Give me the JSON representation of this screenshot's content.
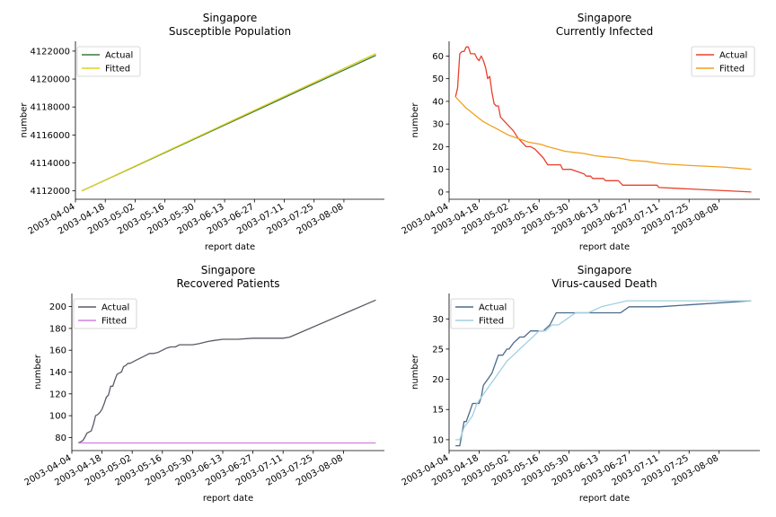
{
  "chart_data": [
    {
      "type": "line",
      "title": [
        "Singapore",
        "Susceptible Population"
      ],
      "xlabel": "report date",
      "ylabel": "number",
      "x_ticks": [
        "2003-04-04",
        "2003-04-18",
        "2003-05-02",
        "2003-05-16",
        "2003-05-30",
        "2003-06-13",
        "2003-06-27",
        "2003-07-11",
        "2003-07-25",
        "2003-08-08"
      ],
      "y_ticks": [
        4112000,
        4114000,
        4116000,
        4118000,
        4120000,
        4122000
      ],
      "xlim": [
        "2003-04-04",
        "2003-08-27"
      ],
      "ylim": [
        4111400,
        4122700
      ],
      "legend": "upper-left",
      "series": [
        {
          "name": "Actual",
          "color": "#3a7a3a",
          "x": [
            "2003-04-07",
            "2003-08-23"
          ],
          "y": [
            4112000,
            4121700
          ]
        },
        {
          "name": "Fitted",
          "color": "#e0d020",
          "x": [
            "2003-04-07",
            "2003-08-23"
          ],
          "y": [
            4112000,
            4121830
          ]
        }
      ]
    },
    {
      "type": "line",
      "title": [
        "Singapore",
        "Currently Infected"
      ],
      "xlabel": "report date",
      "ylabel": "number",
      "x_ticks": [
        "2003-04-04",
        "2003-04-18",
        "2003-05-02",
        "2003-05-16",
        "2003-05-30",
        "2003-06-13",
        "2003-06-27",
        "2003-07-11",
        "2003-07-25",
        "2003-08-08"
      ],
      "y_ticks": [
        0,
        10,
        20,
        30,
        40,
        50,
        60
      ],
      "xlim": [
        "2003-04-04",
        "2003-08-27"
      ],
      "ylim": [
        -3.2,
        66.5
      ],
      "legend": "upper-right",
      "series": [
        {
          "name": "Actual",
          "color": "#e8402c",
          "x": [
            "2003-04-07",
            "2003-04-08",
            "2003-04-09",
            "2003-04-10",
            "2003-04-11",
            "2003-04-12",
            "2003-04-13",
            "2003-04-14",
            "2003-04-15",
            "2003-04-16",
            "2003-04-17",
            "2003-04-18",
            "2003-04-19",
            "2003-04-20",
            "2003-04-21",
            "2003-04-22",
            "2003-04-23",
            "2003-04-24",
            "2003-04-25",
            "2003-04-26",
            "2003-04-27",
            "2003-04-28",
            "2003-04-29",
            "2003-04-30",
            "2003-05-01",
            "2003-05-02",
            "2003-05-04",
            "2003-05-06",
            "2003-05-08",
            "2003-05-10",
            "2003-05-12",
            "2003-05-14",
            "2003-05-16",
            "2003-05-18",
            "2003-05-20",
            "2003-05-22",
            "2003-05-23",
            "2003-05-26",
            "2003-05-27",
            "2003-05-30",
            "2003-05-31",
            "2003-06-06",
            "2003-06-07",
            "2003-06-09",
            "2003-06-10",
            "2003-06-15",
            "2003-06-16",
            "2003-06-22",
            "2003-06-23",
            "2003-06-24",
            "2003-06-25",
            "2003-06-26",
            "2003-06-27",
            "2003-07-10",
            "2003-07-11",
            "2003-08-23"
          ],
          "y": [
            42,
            46,
            61,
            62,
            62,
            64,
            64,
            61,
            61,
            61,
            59,
            58,
            60,
            58,
            55,
            50,
            51,
            44,
            39,
            38,
            38,
            33,
            32,
            31,
            30,
            29,
            27,
            24,
            22,
            20,
            20,
            19,
            17,
            15,
            12,
            12,
            12,
            12,
            10,
            10,
            10,
            8,
            7,
            7,
            6,
            6,
            5,
            5,
            4,
            3,
            3,
            3,
            3,
            3,
            2,
            0
          ]
        },
        {
          "name": "Fitted",
          "color": "#f0a020",
          "x": [
            "2003-04-07",
            "2003-04-08",
            "2003-04-10",
            "2003-04-12",
            "2003-04-14",
            "2003-04-16",
            "2003-04-18",
            "2003-04-20",
            "2003-04-22",
            "2003-04-24",
            "2003-04-26",
            "2003-04-28",
            "2003-04-30",
            "2003-05-02",
            "2003-05-05",
            "2003-05-08",
            "2003-05-11",
            "2003-05-14",
            "2003-05-17",
            "2003-05-20",
            "2003-05-24",
            "2003-05-28",
            "2003-06-01",
            "2003-06-06",
            "2003-06-11",
            "2003-06-16",
            "2003-06-22",
            "2003-06-28",
            "2003-07-05",
            "2003-07-12",
            "2003-07-20",
            "2003-07-30",
            "2003-08-10",
            "2003-08-23"
          ],
          "y": [
            42,
            41,
            39,
            37,
            35.5,
            34,
            32.5,
            31,
            30,
            29,
            28,
            27,
            26,
            25,
            24,
            23,
            22,
            21.5,
            21,
            20,
            19,
            18,
            17.5,
            17,
            16,
            15.5,
            15,
            14,
            13.5,
            12.5,
            12,
            11.5,
            11,
            10
          ]
        }
      ]
    },
    {
      "type": "line",
      "title": [
        "Singapore",
        "Recovered Patients"
      ],
      "xlabel": "report date",
      "ylabel": "number",
      "x_ticks": [
        "2003-04-04",
        "2003-04-18",
        "2003-05-02",
        "2003-05-16",
        "2003-05-30",
        "2003-06-13",
        "2003-06-27",
        "2003-07-11",
        "2003-07-25",
        "2003-08-08"
      ],
      "y_ticks": [
        80,
        100,
        120,
        140,
        160,
        180,
        200
      ],
      "xlim": [
        "2003-04-04",
        "2003-08-27"
      ],
      "ylim": [
        68,
        212
      ],
      "legend": "upper-left",
      "series": [
        {
          "name": "Actual",
          "color": "#5a5a64",
          "x": [
            "2003-04-07",
            "2003-04-08",
            "2003-04-09",
            "2003-04-10",
            "2003-04-11",
            "2003-04-12",
            "2003-04-13",
            "2003-04-14",
            "2003-04-15",
            "2003-04-16",
            "2003-04-17",
            "2003-04-18",
            "2003-04-19",
            "2003-04-20",
            "2003-04-21",
            "2003-04-22",
            "2003-04-23",
            "2003-04-24",
            "2003-04-25",
            "2003-04-26",
            "2003-04-27",
            "2003-04-28",
            "2003-04-29",
            "2003-04-30",
            "2003-05-01",
            "2003-05-02",
            "2003-05-04",
            "2003-05-06",
            "2003-05-08",
            "2003-05-10",
            "2003-05-12",
            "2003-05-14",
            "2003-05-16",
            "2003-05-18",
            "2003-05-20",
            "2003-05-22",
            "2003-05-24",
            "2003-05-27",
            "2003-05-30",
            "2003-06-02",
            "2003-06-06",
            "2003-06-09",
            "2003-06-13",
            "2003-06-20",
            "2003-06-27",
            "2003-07-11",
            "2003-07-14",
            "2003-08-23"
          ],
          "y": [
            75,
            76,
            77,
            80,
            84,
            85,
            86,
            92,
            100,
            101,
            103,
            106,
            111,
            117,
            119,
            127,
            127,
            133,
            138,
            139,
            140,
            145,
            146,
            148,
            148,
            149,
            151,
            153,
            155,
            157,
            157,
            158,
            160,
            162,
            163,
            163,
            165,
            165,
            165,
            166,
            168,
            169,
            170,
            170,
            171,
            171,
            172,
            206
          ]
        },
        {
          "name": "Fitted",
          "color": "#d080e0",
          "x": [
            "2003-04-07",
            "2003-08-23"
          ],
          "y": [
            75,
            75
          ]
        }
      ]
    },
    {
      "type": "line",
      "title": [
        "Singapore",
        "Virus-caused Death"
      ],
      "xlabel": "report date",
      "ylabel": "number",
      "x_ticks": [
        "2003-04-04",
        "2003-04-18",
        "2003-05-02",
        "2003-05-16",
        "2003-05-30",
        "2003-06-13",
        "2003-06-27",
        "2003-07-11",
        "2003-07-25",
        "2003-08-08"
      ],
      "y_ticks": [
        10,
        15,
        20,
        25,
        30
      ],
      "xlim": [
        "2003-04-04",
        "2003-08-27"
      ],
      "ylim": [
        8.2,
        34.2
      ],
      "legend": "upper-left",
      "series": [
        {
          "name": "Actual",
          "color": "#4a6a8a",
          "x": [
            "2003-04-07",
            "2003-04-09",
            "2003-04-10",
            "2003-04-11",
            "2003-04-12",
            "2003-04-13",
            "2003-04-14",
            "2003-04-15",
            "2003-04-16",
            "2003-04-18",
            "2003-04-19",
            "2003-04-20",
            "2003-04-22",
            "2003-04-24",
            "2003-04-25",
            "2003-04-26",
            "2003-04-27",
            "2003-04-29",
            "2003-05-01",
            "2003-05-02",
            "2003-05-04",
            "2003-05-07",
            "2003-05-09",
            "2003-05-12",
            "2003-05-16",
            "2003-05-18",
            "2003-05-21",
            "2003-05-24",
            "2003-06-23",
            "2003-06-27",
            "2003-07-11",
            "2003-08-23"
          ],
          "y": [
            9,
            9,
            11,
            13,
            13,
            14,
            15,
            16,
            16,
            16,
            17,
            19,
            20,
            21,
            22,
            23,
            24,
            24,
            25,
            25,
            26,
            27,
            27,
            28,
            28,
            28,
            29,
            31,
            31,
            32,
            32,
            33
          ]
        },
        {
          "name": "Fitted",
          "color": "#a0d0e0",
          "x": [
            "2003-04-07",
            "2003-04-09",
            "2003-04-11",
            "2003-04-13",
            "2003-04-15",
            "2003-04-17",
            "2003-04-19",
            "2003-04-21",
            "2003-04-23",
            "2003-04-25",
            "2003-04-27",
            "2003-04-29",
            "2003-05-01",
            "2003-05-04",
            "2003-05-07",
            "2003-05-10",
            "2003-05-13",
            "2003-05-16",
            "2003-05-19",
            "2003-05-22",
            "2003-05-25",
            "2003-05-29",
            "2003-06-02",
            "2003-06-08",
            "2003-06-14",
            "2003-06-26",
            "2003-08-23"
          ],
          "y": [
            10,
            10,
            12,
            13,
            14,
            16,
            17,
            18,
            19,
            20,
            21,
            22,
            23,
            24,
            25,
            26,
            27,
            28,
            28,
            29,
            29,
            30,
            31,
            31,
            32,
            33,
            33
          ]
        }
      ]
    }
  ]
}
